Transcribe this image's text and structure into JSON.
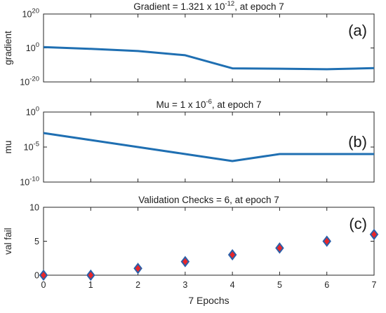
{
  "chart_data": [
    {
      "type": "line",
      "panel_label": "(a)",
      "title_main": "Gradient = 1.321 x 10",
      "title_exp": "-12",
      "title_tail": ", at epoch 7",
      "ylabel": "gradient",
      "yscale": "log",
      "ylim": [
        1e-20,
        1e+20
      ],
      "yticks": [
        {
          "base": "10",
          "exp": "20"
        },
        {
          "base": "10",
          "exp": "0"
        },
        {
          "base": "10",
          "exp": "-20"
        }
      ],
      "x": [
        0,
        1,
        2,
        3,
        4,
        5,
        6,
        7
      ],
      "series": [
        {
          "values": [
            3,
            0.3,
            0.015,
            5e-05,
            1e-12,
            6e-13,
            3e-13,
            1.321e-12
          ],
          "color": "#1f6fb2"
        }
      ]
    },
    {
      "type": "line",
      "panel_label": "(b)",
      "title_main": "Mu = 1 x 10",
      "title_exp": "-6",
      "title_tail": ", at epoch 7",
      "ylabel": "mu",
      "yscale": "log",
      "ylim": [
        1e-10,
        1
      ],
      "yticks": [
        {
          "base": "10",
          "exp": "0"
        },
        {
          "base": "10",
          "exp": "-5"
        },
        {
          "base": "10",
          "exp": "-10"
        }
      ],
      "x": [
        0,
        1,
        2,
        3,
        4,
        5,
        6,
        7
      ],
      "series": [
        {
          "values": [
            0.001,
            0.0001,
            1e-05,
            1e-06,
            1e-07,
            1e-06,
            1e-06,
            1e-06
          ],
          "color": "#1f6fb2"
        }
      ]
    },
    {
      "type": "scatter",
      "panel_label": "(c)",
      "title_main": "Validation Checks = 6, at epoch 7",
      "title_exp": "",
      "title_tail": "",
      "ylabel": "val fail",
      "yscale": "linear",
      "ylim": [
        0,
        10
      ],
      "yticks": [
        {
          "base": "10",
          "exp": ""
        },
        {
          "base": "5",
          "exp": ""
        },
        {
          "base": "0",
          "exp": ""
        }
      ],
      "x": [
        0,
        1,
        2,
        3,
        4,
        5,
        6,
        7
      ],
      "xticks": [
        "0",
        "1",
        "2",
        "3",
        "4",
        "5",
        "6",
        "7"
      ],
      "xlabel": "7 Epochs",
      "series": [
        {
          "values": [
            0,
            0,
            1,
            2,
            3,
            4,
            5,
            6
          ],
          "fill": "#e8262a",
          "stroke": "#2b5fa8"
        }
      ]
    }
  ]
}
